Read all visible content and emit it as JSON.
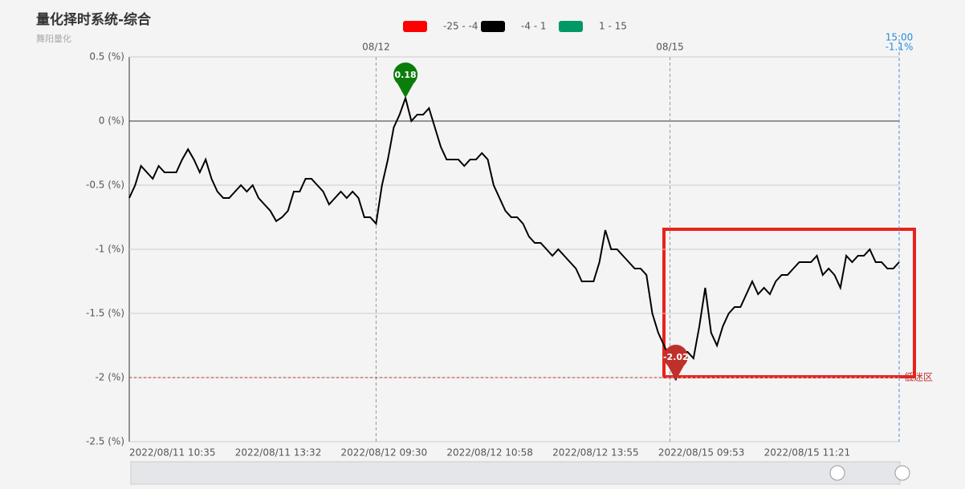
{
  "chart_data": {
    "type": "line",
    "title": "量化择时系统-综合",
    "subtitle": "舞阳量化",
    "pieces": [
      {
        "label": "-25 - -4",
        "color": "#ff0000"
      },
      {
        "label": "-4 - 1",
        "color": "#000000"
      },
      {
        "label": "1 - 15",
        "color": "#009966"
      }
    ],
    "categories": [
      "2022/08/11 10:35",
      null,
      null,
      null,
      null,
      null,
      null,
      null,
      null,
      null,
      null,
      null,
      null,
      null,
      null,
      null,
      null,
      null,
      "2022/08/11 13:32",
      null,
      null,
      null,
      null,
      null,
      null,
      null,
      null,
      null,
      null,
      null,
      null,
      null,
      null,
      null,
      null,
      null,
      "2022/08/12 09:30",
      null,
      null,
      null,
      null,
      null,
      null,
      null,
      null,
      null,
      null,
      null,
      null,
      null,
      null,
      null,
      null,
      null,
      "2022/08/12 10:58",
      null,
      null,
      null,
      null,
      null,
      null,
      null,
      null,
      null,
      null,
      null,
      null,
      null,
      null,
      null,
      null,
      null,
      "2022/08/12 13:55",
      null,
      null,
      null,
      null,
      null,
      null,
      null,
      null,
      null,
      null,
      null,
      null,
      null,
      null,
      null,
      null,
      null,
      "2022/08/15 09:53",
      null,
      null,
      null,
      null,
      null,
      null,
      null,
      null,
      null,
      null,
      null,
      null,
      null,
      null,
      null,
      null,
      null,
      "2022/08/15 11:21",
      null,
      null,
      null,
      null,
      null,
      null,
      null,
      null,
      null,
      null,
      null,
      null,
      null,
      null,
      null,
      null,
      null,
      null,
      null,
      null,
      null,
      null,
      null
    ],
    "series": [
      {
        "color": "#000000",
        "values": [
          -0.6,
          -0.5,
          -0.35,
          -0.4,
          -0.45,
          -0.35,
          -0.4,
          -0.4,
          -0.4,
          -0.3,
          -0.22,
          -0.3,
          -0.4,
          -0.3,
          -0.45,
          -0.55,
          -0.6,
          -0.6,
          -0.55,
          -0.5,
          -0.55,
          -0.5,
          -0.6,
          -0.65,
          -0.7,
          -0.78,
          -0.75,
          -0.7,
          -0.55,
          -0.55,
          -0.45,
          -0.45,
          -0.5,
          -0.55,
          -0.65,
          -0.6,
          -0.55,
          -0.6,
          -0.55,
          -0.6,
          -0.75,
          -0.75,
          -0.8,
          -0.5,
          -0.3,
          -0.05,
          0.05,
          0.18,
          0.0,
          0.05,
          0.05,
          0.1,
          -0.05,
          -0.2,
          -0.3,
          -0.3,
          -0.3,
          -0.35,
          -0.3,
          -0.3,
          -0.25,
          -0.3,
          -0.5,
          -0.6,
          -0.7,
          -0.75,
          -0.75,
          -0.8,
          -0.9,
          -0.95,
          -0.95,
          -1.0,
          -1.05,
          -1.0,
          -1.05,
          -1.1,
          -1.15,
          -1.25,
          -1.25,
          -1.25,
          -1.1,
          -0.85,
          -1.0,
          -1.0,
          -1.05,
          -1.1,
          -1.15,
          -1.15,
          -1.2,
          -1.5,
          -1.65,
          -1.75,
          -1.85,
          -2.02,
          -1.8,
          -1.8,
          -1.85,
          -1.6,
          -1.3,
          -1.65,
          -1.75,
          -1.6,
          -1.5,
          -1.45,
          -1.45,
          -1.35,
          -1.25,
          -1.35,
          -1.3,
          -1.35,
          -1.25,
          -1.2,
          -1.2,
          -1.15,
          -1.1,
          -1.1,
          -1.1,
          -1.05,
          -1.2,
          -1.15,
          -1.2,
          -1.3,
          -1.05,
          -1.1,
          -1.05,
          -1.05,
          -1.0,
          -1.1,
          -1.1,
          -1.15,
          -1.15,
          -1.1
        ]
      }
    ],
    "ylim": [
      -2.5,
      0.5
    ],
    "yticks": [
      {
        "value": -2.5,
        "label": "-2.5 (%)"
      },
      {
        "value": -2,
        "label": "-2 (%)"
      },
      {
        "value": -1.5,
        "label": "-1.5 (%)"
      },
      {
        "value": -1,
        "label": "-1 (%)"
      },
      {
        "value": -0.5,
        "label": "-0.5 (%)"
      },
      {
        "value": 0,
        "label": "0 (%)"
      },
      {
        "value": 0.5,
        "label": "0.5 (%)"
      }
    ],
    "grid": true,
    "day_marks": [
      {
        "label": "08/12",
        "index": 42
      },
      {
        "label": "08/15",
        "index": 92
      }
    ],
    "mark_points": [
      {
        "index": 47,
        "color": "#0a7d0a"
      },
      {
        "index": 93,
        "color": "#c0302a"
      }
    ],
    "mark_line": {
      "value": -2,
      "label": "低迷区",
      "color": "#c0302a"
    },
    "end_time": "15:00",
    "end_value": -1.1,
    "end_value_label": "-1.1%"
  }
}
